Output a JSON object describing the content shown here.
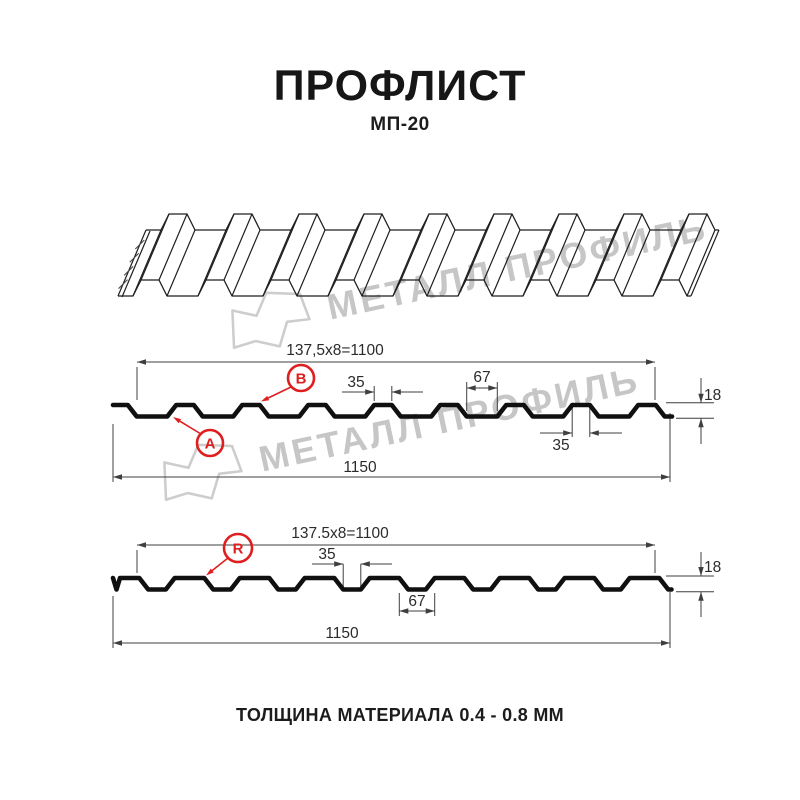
{
  "page": {
    "title": "ПРОФЛИСТ",
    "subtitle": "МП-20",
    "thickness_note": "ТОЛЩИНА МАТЕРИАЛА 0.4 - 0.8 ММ"
  },
  "watermark": {
    "brand_text": "МЕТАЛЛ ПРОФИЛЬ"
  },
  "colors": {
    "accent_red": "#df1f1f",
    "drawing_line": "#3f3f3f",
    "profile_black": "#101010",
    "watermark_gray": "#c6c6c6"
  },
  "profile_front": {
    "working_width_label": "137,5x8=1100",
    "overall_width_label": "1150",
    "rib_top_width_label": "35",
    "valley_width_label": "67",
    "height_label": "18",
    "rib_bottom_width_label": "35",
    "side_a_marker": "А",
    "side_b_marker": "В"
  },
  "profile_reverse": {
    "working_width_label": "137.5x8=1100",
    "overall_width_label": "1150",
    "rib_width_label": "35",
    "valley_width_label": "67",
    "height_label": "18",
    "reverse_marker": "R"
  }
}
